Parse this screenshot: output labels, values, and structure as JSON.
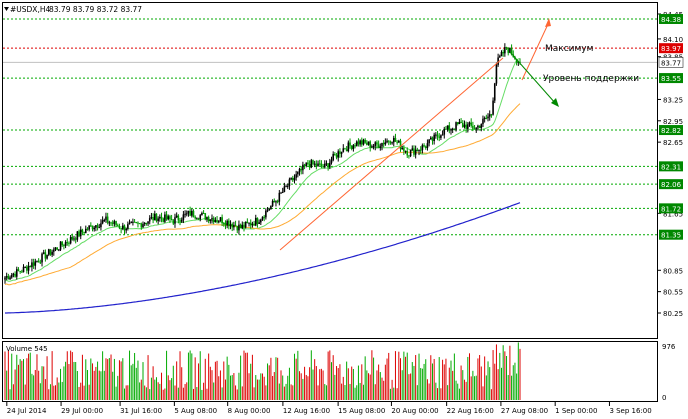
{
  "window": {
    "symbol_title": "#USDX,H4",
    "ohlc_text": "83.79 83.79 83.72 83.77"
  },
  "colors": {
    "background": "#ffffff",
    "grid": "#00aa00",
    "resistance_line": "#dd0000",
    "bull_candle": "#000000",
    "bear_candle": "#009900",
    "ma_fast": "#66dd66",
    "ma_mid": "#ffaa33",
    "ma_slow": "#2222cc",
    "arrow_up": "#ff6633",
    "arrow_down": "#008800",
    "volume_up": "#00aa00",
    "volume_down": "#dd0000",
    "price_label_green": "#008800",
    "price_label_red": "#dd0000"
  },
  "price_axis": {
    "labels": [
      "84.45",
      "84.10",
      "83.85",
      "83.25",
      "82.95",
      "82.65",
      "81.65",
      "80.85",
      "80.55",
      "80.25"
    ]
  },
  "level_badges": [
    {
      "label": "84.38",
      "kind": "green"
    },
    {
      "label": "83.97",
      "kind": "red"
    },
    {
      "label": "83.77",
      "kind": "gray"
    },
    {
      "label": "83.55",
      "kind": "green"
    },
    {
      "label": "82.82",
      "kind": "green"
    },
    {
      "label": "82.31",
      "kind": "green"
    },
    {
      "label": "82.06",
      "kind": "green"
    },
    {
      "label": "81.72",
      "kind": "green"
    },
    {
      "label": "81.35",
      "kind": "green"
    }
  ],
  "annotations": {
    "max_label": "Максимум",
    "support_label": "Уровень поддержки"
  },
  "volume_panel": {
    "title": "Volume 545",
    "axis_top": "976",
    "axis_bottom": "0"
  },
  "time_axis": {
    "labels": [
      "24 Jul 2014",
      "29 Jul 00:00",
      "31 Jul 16:00",
      "5 Aug 08:00",
      "8 Aug 00:00",
      "12 Aug 16:00",
      "15 Aug 08:00",
      "20 Aug 00:00",
      "22 Aug 16:00",
      "27 Aug 08:00",
      "1 Sep 00:00",
      "3 Sep 16:00"
    ]
  }
}
